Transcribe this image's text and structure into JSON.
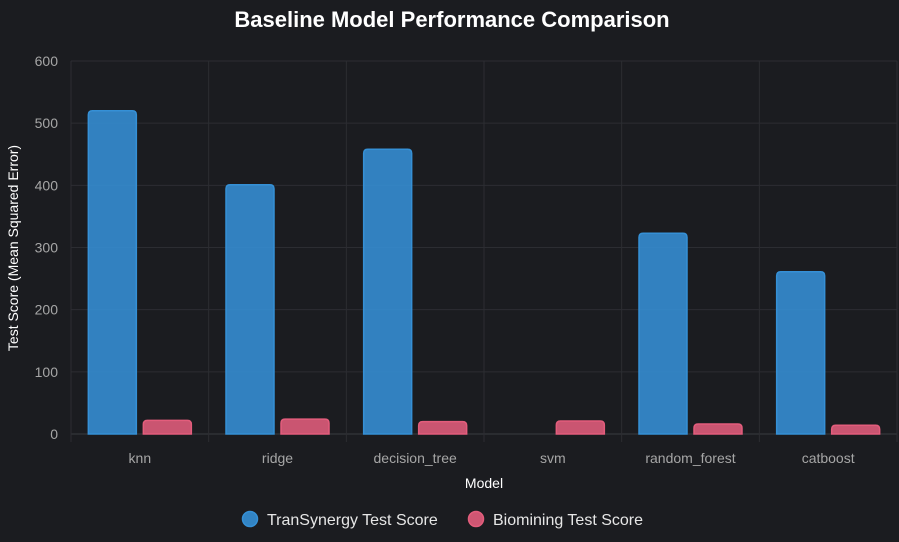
{
  "chart_data": {
    "type": "bar",
    "title": "Baseline Model Performance Comparison",
    "xlabel": "Model",
    "ylabel": "Test Score (Mean Squared Error)",
    "categories": [
      "knn",
      "ridge",
      "decision_tree",
      "svm",
      "random_forest",
      "catboost"
    ],
    "ylim": [
      0,
      600
    ],
    "yticks": [
      0,
      100,
      200,
      300,
      400,
      500,
      600
    ],
    "grid": true,
    "legend_position": "bottom",
    "series": [
      {
        "name": "TranSynergy Test Score",
        "color": "#3590d6",
        "values": [
          520,
          401,
          458,
          null,
          323,
          261
        ]
      },
      {
        "name": "Biomining Test Score",
        "color": "#e35d7c",
        "values": [
          22,
          24,
          20,
          21,
          16,
          14
        ]
      }
    ]
  }
}
